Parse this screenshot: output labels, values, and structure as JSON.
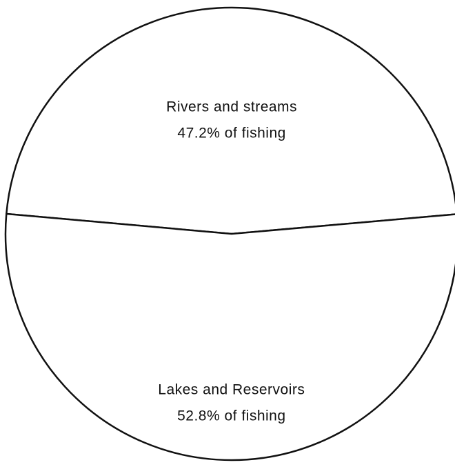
{
  "chart_data": {
    "type": "pie",
    "categories": [
      "Rivers and streams",
      "Lakes and Reservoirs"
    ],
    "values": [
      47.2,
      52.8
    ],
    "value_labels": [
      "47.2% of fishing",
      "52.8% of fishing"
    ],
    "colors": [
      "#ffffff",
      "#ffffff"
    ]
  }
}
